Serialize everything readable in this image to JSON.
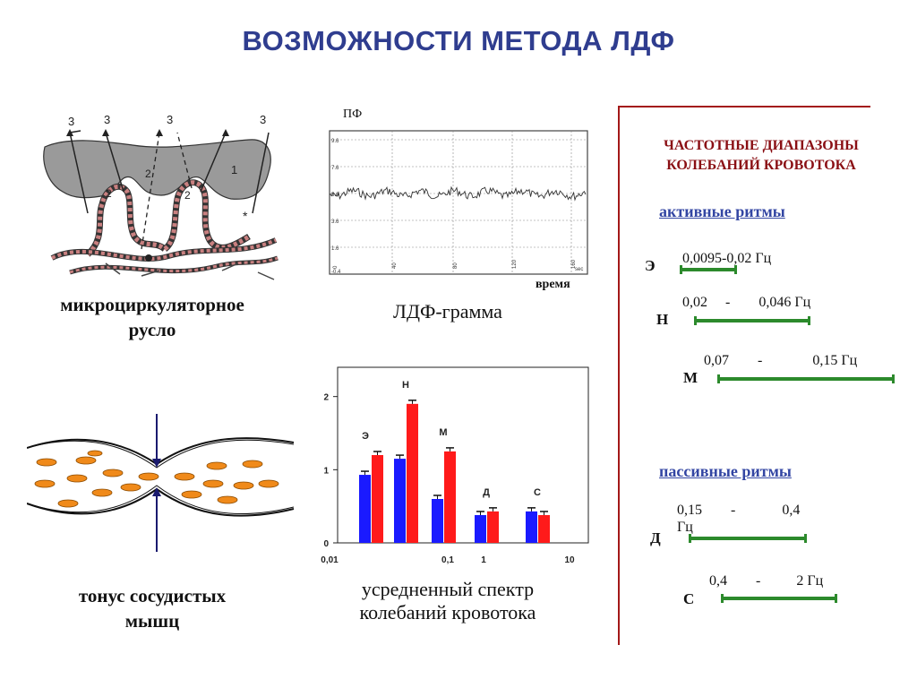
{
  "title": "ВОЗМОЖНОСТИ МЕТОДА ЛДФ",
  "microcirc": {
    "caption_line1": "микроциркуляторное",
    "caption_line2": "русло",
    "labels": [
      "3",
      "3",
      "3",
      "3",
      "1",
      "2",
      "2",
      "2"
    ]
  },
  "ldf_gram": {
    "y_axis_label": "ПФ",
    "x_axis_label": "время",
    "caption": "ЛДФ-грамма",
    "y_ticks": [
      "9.6",
      "7.6",
      "5.6",
      "3.6",
      "1.6",
      "-0.4"
    ],
    "x_ticks": [
      "0",
      "40",
      "80",
      "120",
      "160",
      "sec"
    ]
  },
  "vessel": {
    "caption_line1": "тонус сосудистых",
    "caption_line2": "мышц"
  },
  "spectrum": {
    "caption_line1": "усредненный спектр",
    "caption_line2": "колебаний кровотока"
  },
  "chart_data": {
    "type": "bar",
    "categories": [
      "Э",
      "Н",
      "М",
      "Д",
      "С"
    ],
    "series": [
      {
        "color": "#1a1aff",
        "values": [
          0.93,
          1.15,
          0.6,
          0.38,
          0.43
        ]
      },
      {
        "color": "#ff1a1a",
        "values": [
          1.2,
          1.9,
          1.25,
          0.43,
          0.38
        ]
      }
    ],
    "ylim": [
      0,
      2.4
    ],
    "y_ticks": [
      "0",
      "1",
      "2"
    ],
    "x_tick_labels": [
      "0,01",
      "0,1",
      "1",
      "10"
    ],
    "error_bars": true
  },
  "freq_panel": {
    "title_line1": "ЧАСТОТНЫЕ ДИАПАЗОНЫ",
    "title_line2": "КОЛЕБАНИЙ КРОВОТОКА",
    "accent": "#8a0f14",
    "active_heading": "активные ритмы",
    "passive_heading": "пассивные ритмы",
    "bands": [
      {
        "letter": "Э",
        "range": "0,0095-0,02 Гц"
      },
      {
        "letter": "Н",
        "range": "0,02     -        0,046 Гц"
      },
      {
        "letter": "М",
        "range": "0,07        -              0,15 Гц"
      },
      {
        "letter": "Д",
        "range": "0,15        -             0,4\nГц"
      },
      {
        "letter": "С",
        "range": "0,4        -          2 Гц"
      }
    ],
    "bar_color": "#2c8a2c"
  }
}
